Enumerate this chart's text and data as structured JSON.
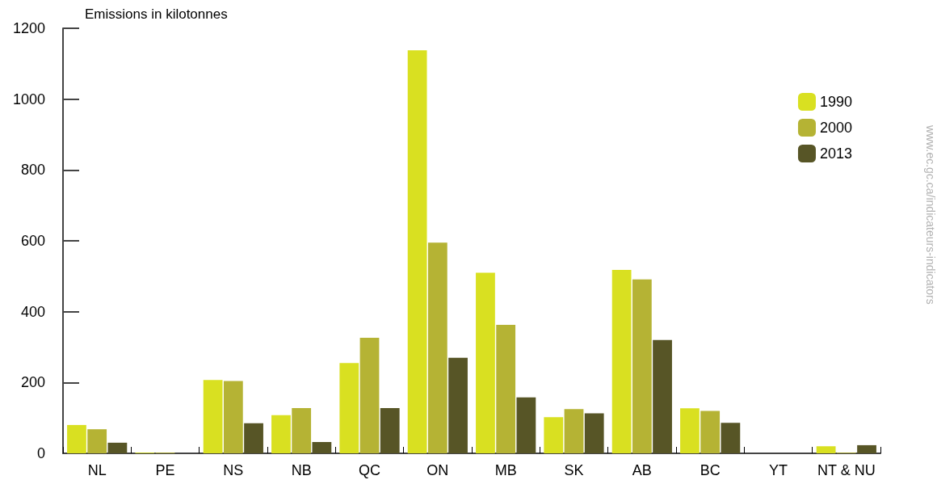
{
  "chart_data": {
    "type": "bar",
    "ylabel": "Emissions in kilotonnes",
    "categories": [
      "NL",
      "PE",
      "NS",
      "NB",
      "QC",
      "ON",
      "MB",
      "SK",
      "AB",
      "BC",
      "YT",
      "NT & NU"
    ],
    "series": [
      {
        "name": "1990",
        "color": "#d9e021",
        "values": [
          80,
          2,
          207,
          108,
          255,
          1138,
          510,
          102,
          518,
          127,
          null,
          20
        ]
      },
      {
        "name": "2000",
        "color": "#b5b334",
        "values": [
          68,
          2,
          204,
          128,
          326,
          595,
          363,
          125,
          491,
          120,
          null,
          2
        ]
      },
      {
        "name": "2013",
        "color": "#575526",
        "values": [
          30,
          null,
          85,
          32,
          128,
          270,
          158,
          113,
          320,
          86,
          null,
          23
        ]
      }
    ],
    "ylim": [
      0,
      1200
    ],
    "yticks": [
      0,
      200,
      400,
      600,
      800,
      1000,
      1200
    ],
    "grid": false,
    "legend": "top right",
    "annotations": [
      "www.ec.gc.ca/indicateurs-indicators"
    ]
  }
}
